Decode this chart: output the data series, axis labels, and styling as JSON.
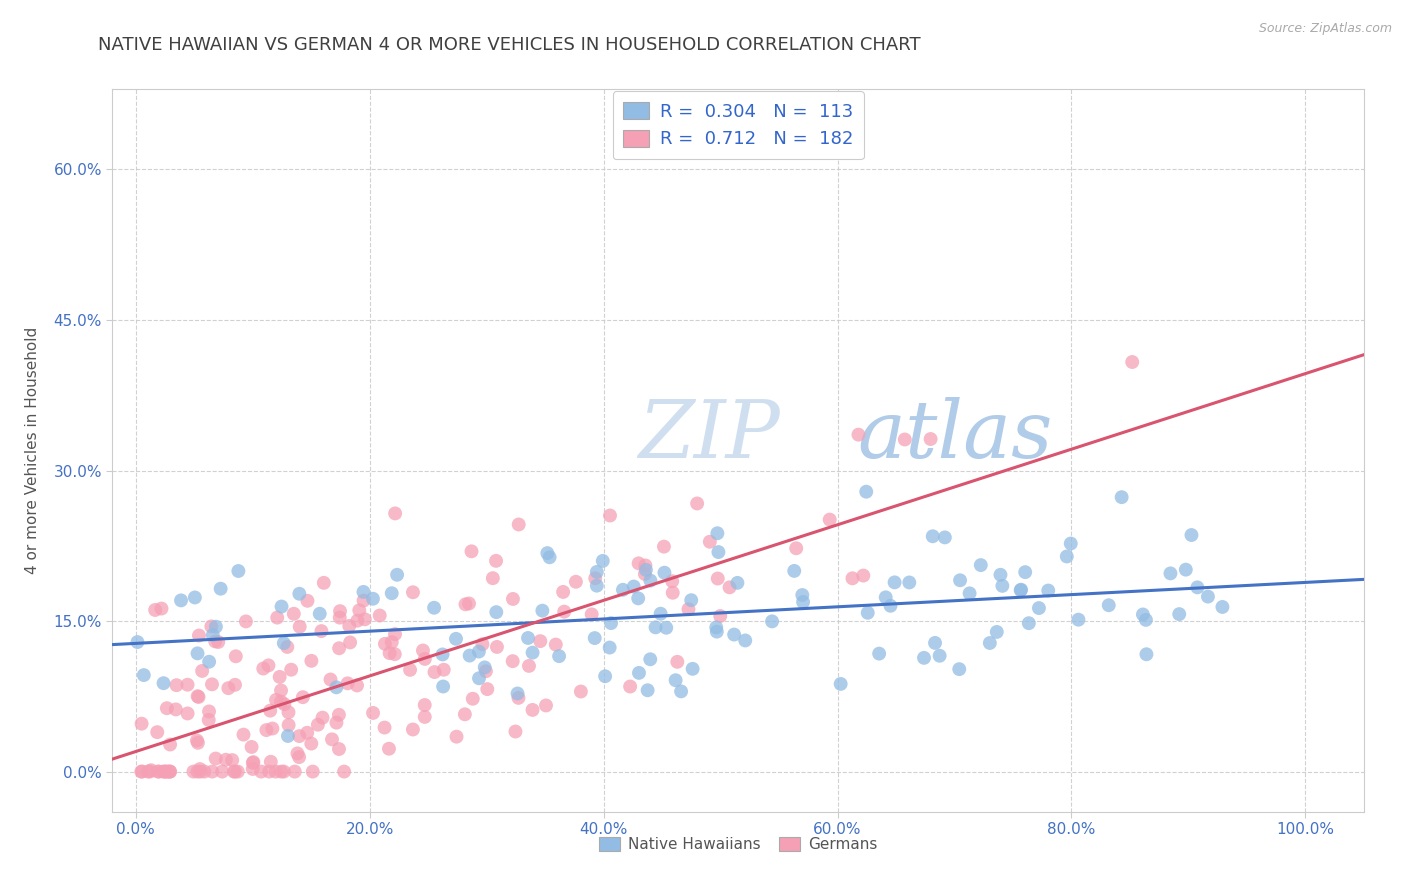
{
  "title": "NATIVE HAWAIIAN VS GERMAN 4 OR MORE VEHICLES IN HOUSEHOLD CORRELATION CHART",
  "source_text": "Source: ZipAtlas.com",
  "ylabel": "4 or more Vehicles in Household",
  "xlim": [
    -0.02,
    1.05
  ],
  "ylim": [
    -0.04,
    0.68
  ],
  "xticks": [
    0.0,
    0.2,
    0.4,
    0.6,
    0.8,
    1.0
  ],
  "xticklabels": [
    "0.0%",
    "20.0%",
    "40.0%",
    "60.0%",
    "80.0%",
    "100.0%"
  ],
  "yticks": [
    0.0,
    0.15,
    0.3,
    0.45,
    0.6
  ],
  "yticklabels": [
    "0.0%",
    "15.0%",
    "30.0%",
    "45.0%",
    "60.0%"
  ],
  "blue_color": "#92bce3",
  "pink_color": "#f5a0b5",
  "blue_line_color": "#4472c4",
  "pink_line_color": "#d9546e",
  "blue_R": 0.304,
  "blue_N": 113,
  "pink_R": 0.712,
  "pink_N": 182,
  "legend_label_blue": "Native Hawaiians",
  "legend_label_pink": "Germans",
  "background_color": "#ffffff",
  "grid_color": "#cccccc",
  "title_color": "#404040",
  "title_fontsize": 13,
  "axis_label_color": "#555555",
  "tick_label_color": "#4472c4",
  "legend_text_color": "#3366cc",
  "watermark_color": "#d0dff0",
  "seed": 7
}
